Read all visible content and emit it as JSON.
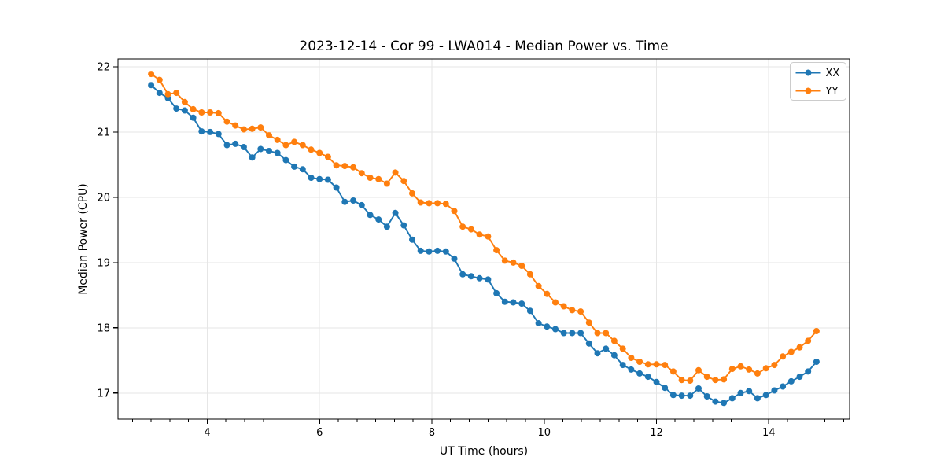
{
  "chart_data": {
    "type": "line",
    "title": "2023-12-14 - Cor 99 - LWA014 - Median Power vs. Time",
    "xlabel": "UT Time (hours)",
    "ylabel": "Median Power (CPU)",
    "xlim": [
      2.41,
      15.44
    ],
    "ylim": [
      16.6,
      22.12
    ],
    "x_ticks": [
      4,
      6,
      8,
      10,
      12,
      14
    ],
    "y_ticks": [
      17,
      18,
      19,
      20,
      21,
      22
    ],
    "x_minor_step": 0.3333,
    "grid": true,
    "legend_position": "upper right",
    "x": [
      3.0,
      3.15,
      3.3,
      3.45,
      3.6,
      3.75,
      3.9,
      4.05,
      4.2,
      4.35,
      4.5,
      4.65,
      4.8,
      4.95,
      5.1,
      5.25,
      5.4,
      5.55,
      5.7,
      5.85,
      6.0,
      6.15,
      6.3,
      6.45,
      6.6,
      6.75,
      6.9,
      7.05,
      7.2,
      7.35,
      7.5,
      7.65,
      7.8,
      7.95,
      8.1,
      8.25,
      8.4,
      8.55,
      8.7,
      8.85,
      9.0,
      9.15,
      9.3,
      9.45,
      9.6,
      9.75,
      9.9,
      10.05,
      10.2,
      10.35,
      10.5,
      10.65,
      10.8,
      10.95,
      11.1,
      11.25,
      11.4,
      11.55,
      11.7,
      11.85,
      12.0,
      12.15,
      12.3,
      12.45,
      12.6,
      12.75,
      12.9,
      13.05,
      13.2,
      13.35,
      13.5,
      13.65,
      13.8,
      13.95,
      14.1,
      14.25,
      14.4,
      14.55,
      14.7,
      14.85
    ],
    "series": [
      {
        "name": "XX",
        "color": "#1f77b4",
        "marker": "circle",
        "values": [
          21.72,
          21.6,
          21.52,
          21.36,
          21.33,
          21.22,
          21.01,
          21.0,
          20.97,
          20.8,
          20.82,
          20.77,
          20.61,
          20.74,
          20.71,
          20.68,
          20.57,
          20.47,
          20.43,
          20.3,
          20.28,
          20.27,
          20.15,
          19.93,
          19.95,
          19.88,
          19.73,
          19.66,
          19.55,
          19.76,
          19.57,
          19.35,
          19.18,
          19.17,
          19.18,
          19.17,
          19.06,
          18.82,
          18.79,
          18.76,
          18.74,
          18.53,
          18.4,
          18.39,
          18.37,
          18.26,
          18.07,
          18.02,
          17.98,
          17.92,
          17.92,
          17.92,
          17.76,
          17.61,
          17.68,
          17.58,
          17.43,
          17.36,
          17.3,
          17.25,
          17.17,
          17.08,
          16.97,
          16.96,
          16.96,
          17.07,
          16.95,
          16.87,
          16.85,
          16.92,
          17.0,
          17.03,
          16.92,
          16.97,
          17.04,
          17.1,
          17.18,
          17.25,
          17.33,
          17.48
        ]
      },
      {
        "name": "YY",
        "color": "#ff7f0e",
        "marker": "circle",
        "values": [
          21.89,
          21.8,
          21.58,
          21.6,
          21.46,
          21.35,
          21.3,
          21.3,
          21.29,
          21.16,
          21.1,
          21.04,
          21.05,
          21.07,
          20.95,
          20.88,
          20.8,
          20.85,
          20.8,
          20.73,
          20.68,
          20.62,
          20.49,
          20.48,
          20.46,
          20.37,
          20.3,
          20.28,
          20.21,
          20.38,
          20.25,
          20.06,
          19.92,
          19.91,
          19.91,
          19.9,
          19.79,
          19.55,
          19.51,
          19.43,
          19.4,
          19.19,
          19.03,
          19.0,
          18.95,
          18.82,
          18.64,
          18.52,
          18.39,
          18.33,
          18.27,
          18.25,
          18.08,
          17.92,
          17.92,
          17.8,
          17.68,
          17.54,
          17.48,
          17.44,
          17.44,
          17.43,
          17.33,
          17.2,
          17.19,
          17.35,
          17.25,
          17.2,
          17.21,
          17.37,
          17.41,
          17.36,
          17.3,
          17.38,
          17.43,
          17.56,
          17.63,
          17.7,
          17.8,
          17.95
        ]
      }
    ]
  },
  "style": {
    "grid_color": "#e6e6e6",
    "spine_color": "#000000",
    "legend_border_color": "#cccccc",
    "legend_bg_color": "#ffffff"
  }
}
